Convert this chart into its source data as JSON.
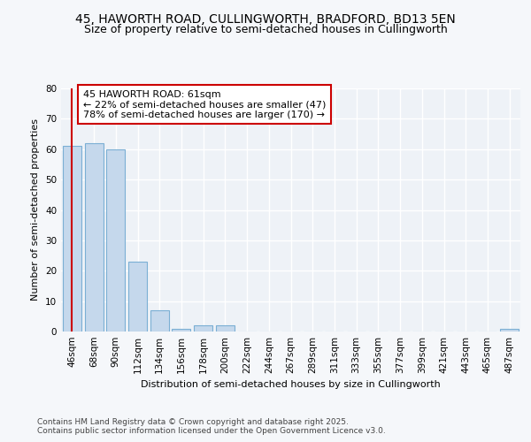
{
  "title_line1": "45, HAWORTH ROAD, CULLINGWORTH, BRADFORD, BD13 5EN",
  "title_line2": "Size of property relative to semi-detached houses in Cullingworth",
  "xlabel": "Distribution of semi-detached houses by size in Cullingworth",
  "ylabel": "Number of semi-detached properties",
  "categories": [
    "46sqm",
    "68sqm",
    "90sqm",
    "112sqm",
    "134sqm",
    "156sqm",
    "178sqm",
    "200sqm",
    "222sqm",
    "244sqm",
    "267sqm",
    "289sqm",
    "311sqm",
    "333sqm",
    "355sqm",
    "377sqm",
    "399sqm",
    "421sqm",
    "443sqm",
    "465sqm",
    "487sqm"
  ],
  "values": [
    61,
    62,
    60,
    23,
    7,
    1,
    2,
    2,
    0,
    0,
    0,
    0,
    0,
    0,
    0,
    0,
    0,
    0,
    0,
    0,
    1
  ],
  "bar_color": "#c5d8ec",
  "bar_edge_color": "#7bafd4",
  "vline_color": "#cc0000",
  "annotation_text": "45 HAWORTH ROAD: 61sqm\n← 22% of semi-detached houses are smaller (47)\n78% of semi-detached houses are larger (170) →",
  "annotation_box_color": "#ffffff",
  "annotation_edge_color": "#cc0000",
  "ylim": [
    0,
    80
  ],
  "yticks": [
    0,
    10,
    20,
    30,
    40,
    50,
    60,
    70,
    80
  ],
  "footer_text": "Contains HM Land Registry data © Crown copyright and database right 2025.\nContains public sector information licensed under the Open Government Licence v3.0.",
  "bg_color": "#f5f7fa",
  "plot_bg_color": "#eef2f7",
  "grid_color": "#ffffff",
  "title_fontsize": 10,
  "subtitle_fontsize": 9,
  "axis_label_fontsize": 8,
  "tick_fontsize": 7.5,
  "annotation_fontsize": 8,
  "footer_fontsize": 6.5
}
